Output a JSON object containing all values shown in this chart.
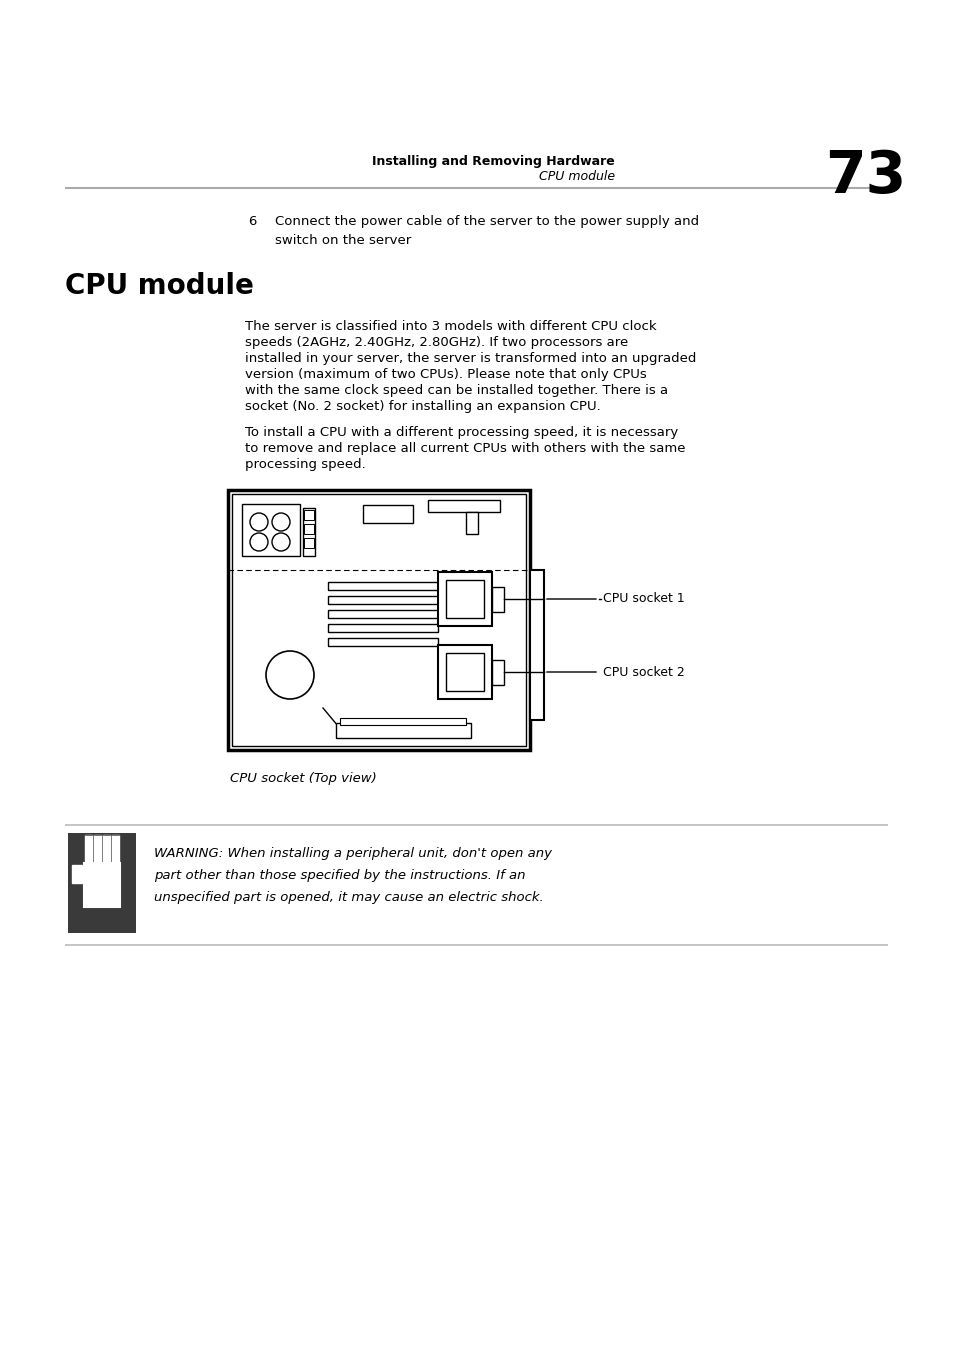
{
  "page_bg": "#ffffff",
  "header_text1": "Installing and Removing Hardware",
  "header_text2": "CPU module",
  "header_number": "73",
  "step6_num": "6",
  "step6_text": "Connect the power cable of the server to the power supply and\nswitch on the server",
  "section_title": "CPU module",
  "para1_line1": "The server is classified into 3 models with different CPU clock",
  "para1_line2": "speeds (2AGHz, 2.40GHz, 2.80GHz). If two processors are",
  "para1_line3": "installed in your server, the server is transformed into an upgraded",
  "para1_line4": "version (maximum of two CPUs). Please note that only CPUs",
  "para1_line5": "with the same clock speed can be installed together. There is a",
  "para1_line6": "socket (No. 2 socket) for installing an expansion CPU.",
  "para2_line1": "To install a CPU with a different processing speed, it is necessary",
  "para2_line2": "to remove and replace all current CPUs with others with the same",
  "para2_line3": "processing speed.",
  "diagram_caption": "CPU socket (Top view)",
  "cpu_socket1_label": "CPU socket 1",
  "cpu_socket2_label": "CPU socket 2",
  "warning_text_line1": "WARNING: When installing a peripheral unit, don't open any",
  "warning_text_line2": "part other than those specified by the instructions. If an",
  "warning_text_line3": "unspecified part is opened, it may cause an electric shock.",
  "header_line_color": "#aaaaaa",
  "warning_line_color": "#bbbbbb"
}
